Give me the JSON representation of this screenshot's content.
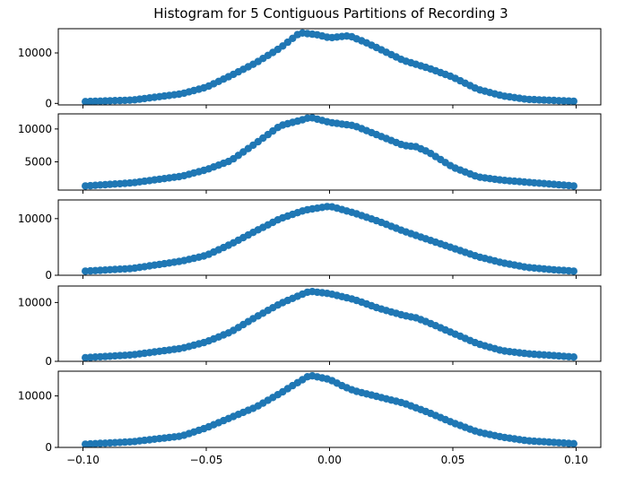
{
  "title": "Histogram for 5 Contiguous Partitions of Recording 3",
  "colors": {
    "marker": "#1f77b4",
    "line": "#1f77b4",
    "axes": "#000000"
  },
  "chart_data": [
    {
      "type": "line",
      "markers": true,
      "title": "Histogram for 5 Contiguous Partitions of Recording 3",
      "xlabel": "",
      "ylabel": "",
      "xlim": [
        -0.11,
        0.11
      ],
      "ylim": [
        -300,
        14800
      ],
      "yticks": [
        0,
        10000
      ],
      "ytick_labels": [
        "0",
        "10000"
      ],
      "x_tick_labels_shown": false,
      "keypoints": [
        [
          -0.1,
          350
        ],
        [
          -0.08,
          650
        ],
        [
          -0.06,
          1900
        ],
        [
          -0.05,
          3200
        ],
        [
          -0.04,
          5500
        ],
        [
          -0.03,
          8000
        ],
        [
          -0.02,
          11000
        ],
        [
          -0.012,
          14000
        ],
        [
          -0.005,
          13600
        ],
        [
          0.0,
          13000
        ],
        [
          0.008,
          13400
        ],
        [
          0.015,
          12000
        ],
        [
          0.03,
          8500
        ],
        [
          0.04,
          7000
        ],
        [
          0.05,
          5200
        ],
        [
          0.06,
          2800
        ],
        [
          0.07,
          1500
        ],
        [
          0.08,
          800
        ],
        [
          0.1,
          400
        ]
      ]
    },
    {
      "type": "line",
      "markers": true,
      "xlabel": "",
      "ylabel": "",
      "xlim": [
        -0.11,
        0.11
      ],
      "ylim": [
        700,
        12300
      ],
      "yticks": [
        5000,
        10000
      ],
      "ytick_labels": [
        "5000",
        "10000"
      ],
      "x_tick_labels_shown": false,
      "keypoints": [
        [
          -0.1,
          1300
        ],
        [
          -0.08,
          1800
        ],
        [
          -0.06,
          2800
        ],
        [
          -0.05,
          3800
        ],
        [
          -0.04,
          5200
        ],
        [
          -0.03,
          7800
        ],
        [
          -0.02,
          10500
        ],
        [
          -0.01,
          11500
        ],
        [
          -0.008,
          11800
        ],
        [
          0.0,
          11000
        ],
        [
          0.01,
          10500
        ],
        [
          0.02,
          9000
        ],
        [
          0.03,
          7500
        ],
        [
          0.035,
          7300
        ],
        [
          0.04,
          6500
        ],
        [
          0.05,
          4200
        ],
        [
          0.06,
          2700
        ],
        [
          0.07,
          2200
        ],
        [
          0.08,
          1900
        ],
        [
          0.1,
          1300
        ]
      ]
    },
    {
      "type": "line",
      "markers": true,
      "xlabel": "",
      "ylabel": "",
      "xlim": [
        -0.11,
        0.11
      ],
      "ylim": [
        0,
        13300
      ],
      "yticks": [
        0,
        10000
      ],
      "ytick_labels": [
        "0",
        "10000"
      ],
      "x_tick_labels_shown": false,
      "keypoints": [
        [
          -0.1,
          700
        ],
        [
          -0.08,
          1200
        ],
        [
          -0.06,
          2500
        ],
        [
          -0.05,
          3500
        ],
        [
          -0.04,
          5500
        ],
        [
          -0.03,
          7800
        ],
        [
          -0.02,
          10000
        ],
        [
          -0.01,
          11500
        ],
        [
          0.0,
          12200
        ],
        [
          0.01,
          11000
        ],
        [
          0.02,
          9500
        ],
        [
          0.03,
          7800
        ],
        [
          0.04,
          6300
        ],
        [
          0.05,
          4800
        ],
        [
          0.06,
          3300
        ],
        [
          0.07,
          2200
        ],
        [
          0.08,
          1400
        ],
        [
          0.09,
          1000
        ],
        [
          0.1,
          700
        ]
      ]
    },
    {
      "type": "line",
      "markers": true,
      "xlabel": "",
      "ylabel": "",
      "xlim": [
        -0.11,
        0.11
      ],
      "ylim": [
        0,
        12800
      ],
      "yticks": [
        0,
        10000
      ],
      "ytick_labels": [
        "0",
        "10000"
      ],
      "x_tick_labels_shown": false,
      "keypoints": [
        [
          -0.1,
          600
        ],
        [
          -0.08,
          1100
        ],
        [
          -0.06,
          2200
        ],
        [
          -0.05,
          3300
        ],
        [
          -0.04,
          5000
        ],
        [
          -0.03,
          7500
        ],
        [
          -0.02,
          9800
        ],
        [
          -0.01,
          11600
        ],
        [
          -0.008,
          11900
        ],
        [
          0.0,
          11500
        ],
        [
          0.01,
          10500
        ],
        [
          0.02,
          9000
        ],
        [
          0.03,
          7800
        ],
        [
          0.035,
          7400
        ],
        [
          0.04,
          6600
        ],
        [
          0.05,
          4800
        ],
        [
          0.06,
          3000
        ],
        [
          0.07,
          1800
        ],
        [
          0.08,
          1300
        ],
        [
          0.1,
          700
        ]
      ]
    },
    {
      "type": "line",
      "markers": true,
      "xlabel": "",
      "ylabel": "",
      "xlim": [
        -0.11,
        0.11
      ],
      "ylim": [
        0,
        14800
      ],
      "yticks": [
        0,
        10000
      ],
      "ytick_labels": [
        "0",
        "10000"
      ],
      "xticks": [
        -0.1,
        -0.05,
        0.0,
        0.05,
        0.1
      ],
      "xtick_labels": [
        "−0.10",
        "−0.05",
        "0.00",
        "0.05",
        "0.10"
      ],
      "x_tick_labels_shown": true,
      "keypoints": [
        [
          -0.1,
          600
        ],
        [
          -0.08,
          1100
        ],
        [
          -0.06,
          2200
        ],
        [
          -0.05,
          3800
        ],
        [
          -0.04,
          5800
        ],
        [
          -0.03,
          7800
        ],
        [
          -0.02,
          10500
        ],
        [
          -0.015,
          12000
        ],
        [
          -0.008,
          14000
        ],
        [
          0.0,
          13200
        ],
        [
          0.005,
          12000
        ],
        [
          0.01,
          11000
        ],
        [
          0.02,
          9800
        ],
        [
          0.03,
          8600
        ],
        [
          0.04,
          6800
        ],
        [
          0.05,
          4800
        ],
        [
          0.06,
          3000
        ],
        [
          0.07,
          2000
        ],
        [
          0.08,
          1300
        ],
        [
          0.1,
          700
        ]
      ]
    }
  ]
}
